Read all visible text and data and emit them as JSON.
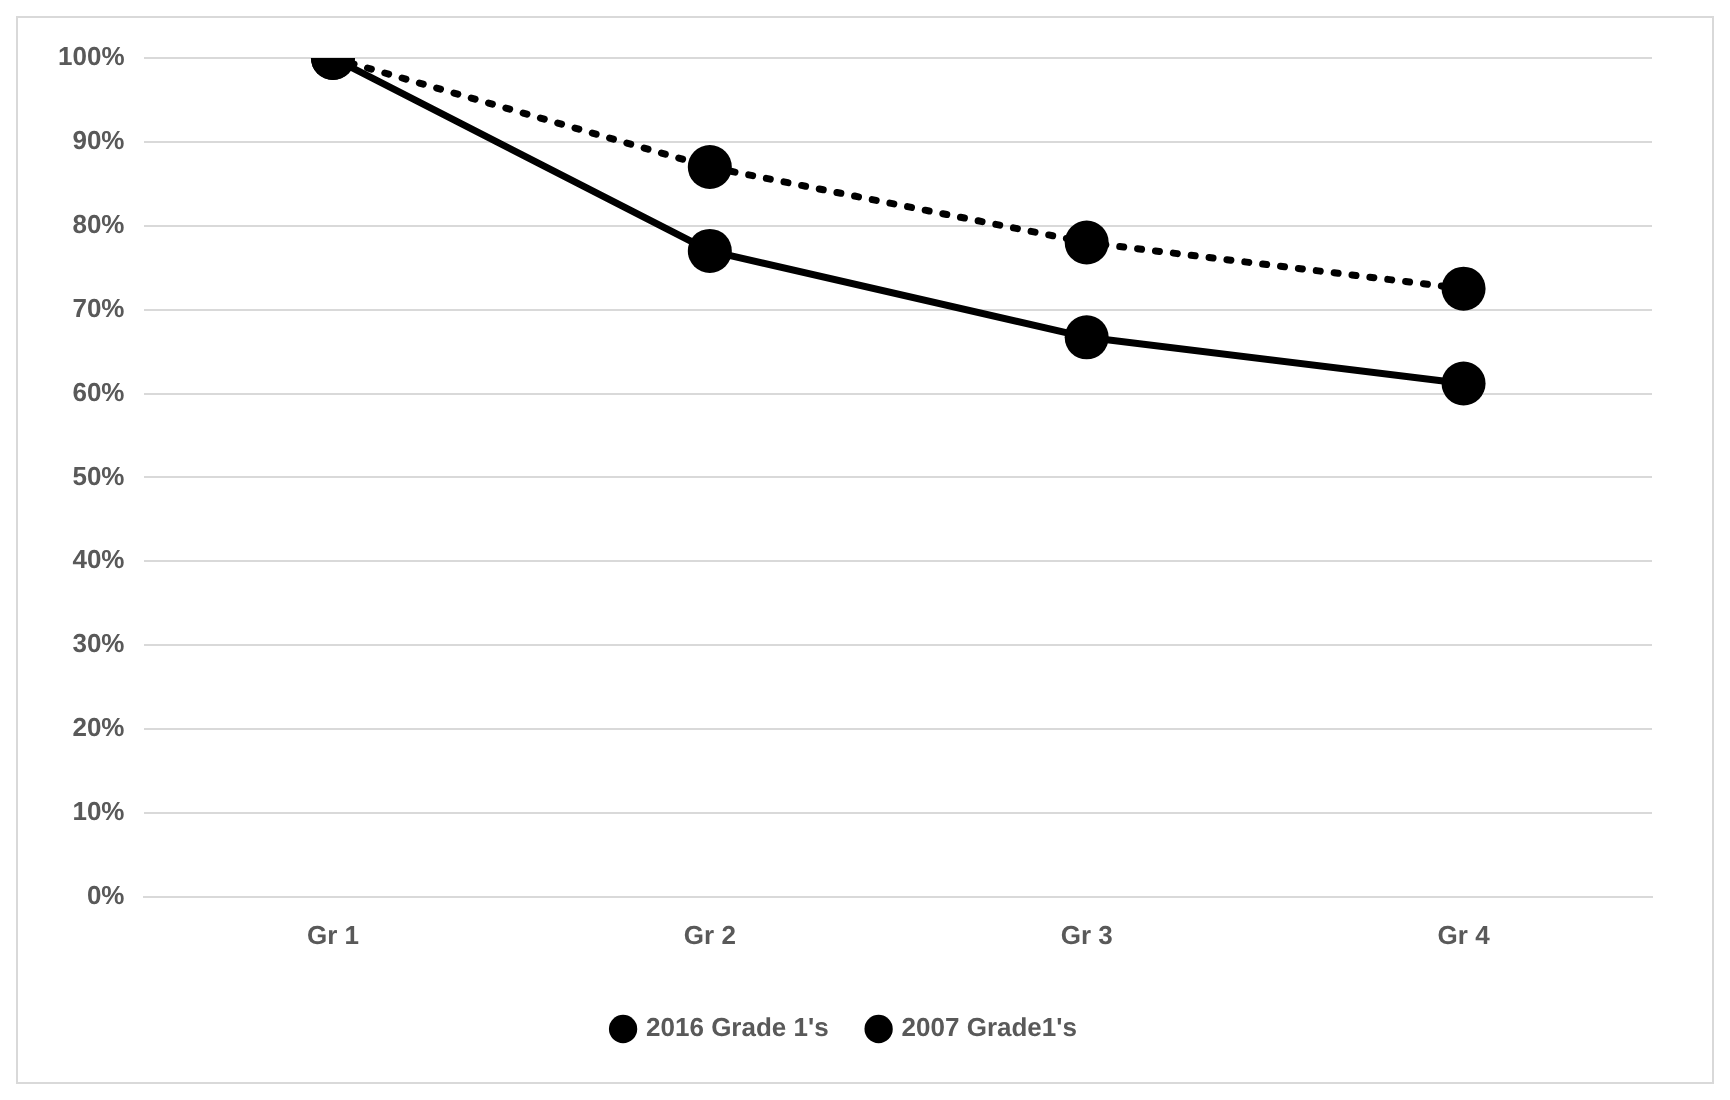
{
  "chart_data": {
    "type": "line",
    "categories": [
      "Gr 1",
      "Gr 2",
      "Gr 3",
      "Gr 4"
    ],
    "series": [
      {
        "name": "2016 Grade 1's",
        "color": "#000000",
        "values": [
          100,
          87,
          78,
          72.5
        ],
        "line_style": "dotted"
      },
      {
        "name": "2007 Grade1's",
        "color": "#000000",
        "values": [
          100,
          77,
          66.7,
          61.2
        ],
        "line_style": "solid"
      }
    ],
    "ylim": [
      0,
      100
    ],
    "yticks": [
      {
        "value": 0,
        "label": "0%"
      },
      {
        "value": 10,
        "label": "10%"
      },
      {
        "value": 20,
        "label": "20%"
      },
      {
        "value": 30,
        "label": "30%"
      },
      {
        "value": 40,
        "label": "40%"
      },
      {
        "value": 50,
        "label": "50%"
      },
      {
        "value": 60,
        "label": "60%"
      },
      {
        "value": 70,
        "label": "70%"
      },
      {
        "value": 80,
        "label": "80%"
      },
      {
        "value": 90,
        "label": "90%"
      },
      {
        "value": 100,
        "label": "100%"
      }
    ],
    "grid": "y",
    "legend": "bottom",
    "marker": "circle"
  }
}
